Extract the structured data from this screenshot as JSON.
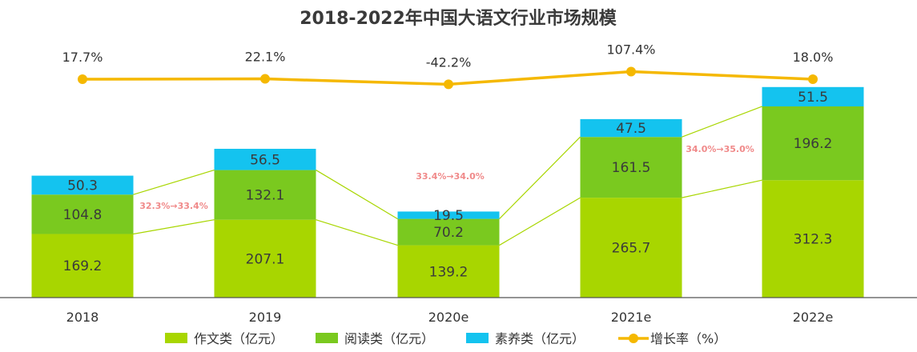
{
  "chart_data": {
    "type": "bar",
    "stacked": true,
    "title": "2018-2022年中国大语文行业市场规模",
    "categories": [
      "2018",
      "2019",
      "2020e",
      "2021e",
      "2022e"
    ],
    "series": [
      {
        "name": "作文类（亿元）",
        "color": "#a8d600",
        "values": [
          169.2,
          207.1,
          139.2,
          265.7,
          312.3
        ]
      },
      {
        "name": "阅读类（亿元）",
        "color": "#7ac91f",
        "values": [
          104.8,
          132.1,
          70.2,
          161.5,
          196.2
        ]
      },
      {
        "name": "素养类（亿元）",
        "color": "#14c3ef",
        "values": [
          50.3,
          56.5,
          19.5,
          47.5,
          51.5
        ]
      }
    ],
    "growth_series": {
      "name": "增长率（%）",
      "color": "#f5b800",
      "values": [
        17.7,
        22.1,
        -42.2,
        107.4,
        18.0
      ],
      "labels": [
        "17.7%",
        "22.1%",
        "-42.2%",
        "107.4%",
        "18.0%"
      ]
    },
    "share_annotations": [
      "32.3%→33.4%",
      "33.4%→34.0%",
      "34.0%→35.0%"
    ],
    "legend_position": "bottom",
    "grid": false
  }
}
